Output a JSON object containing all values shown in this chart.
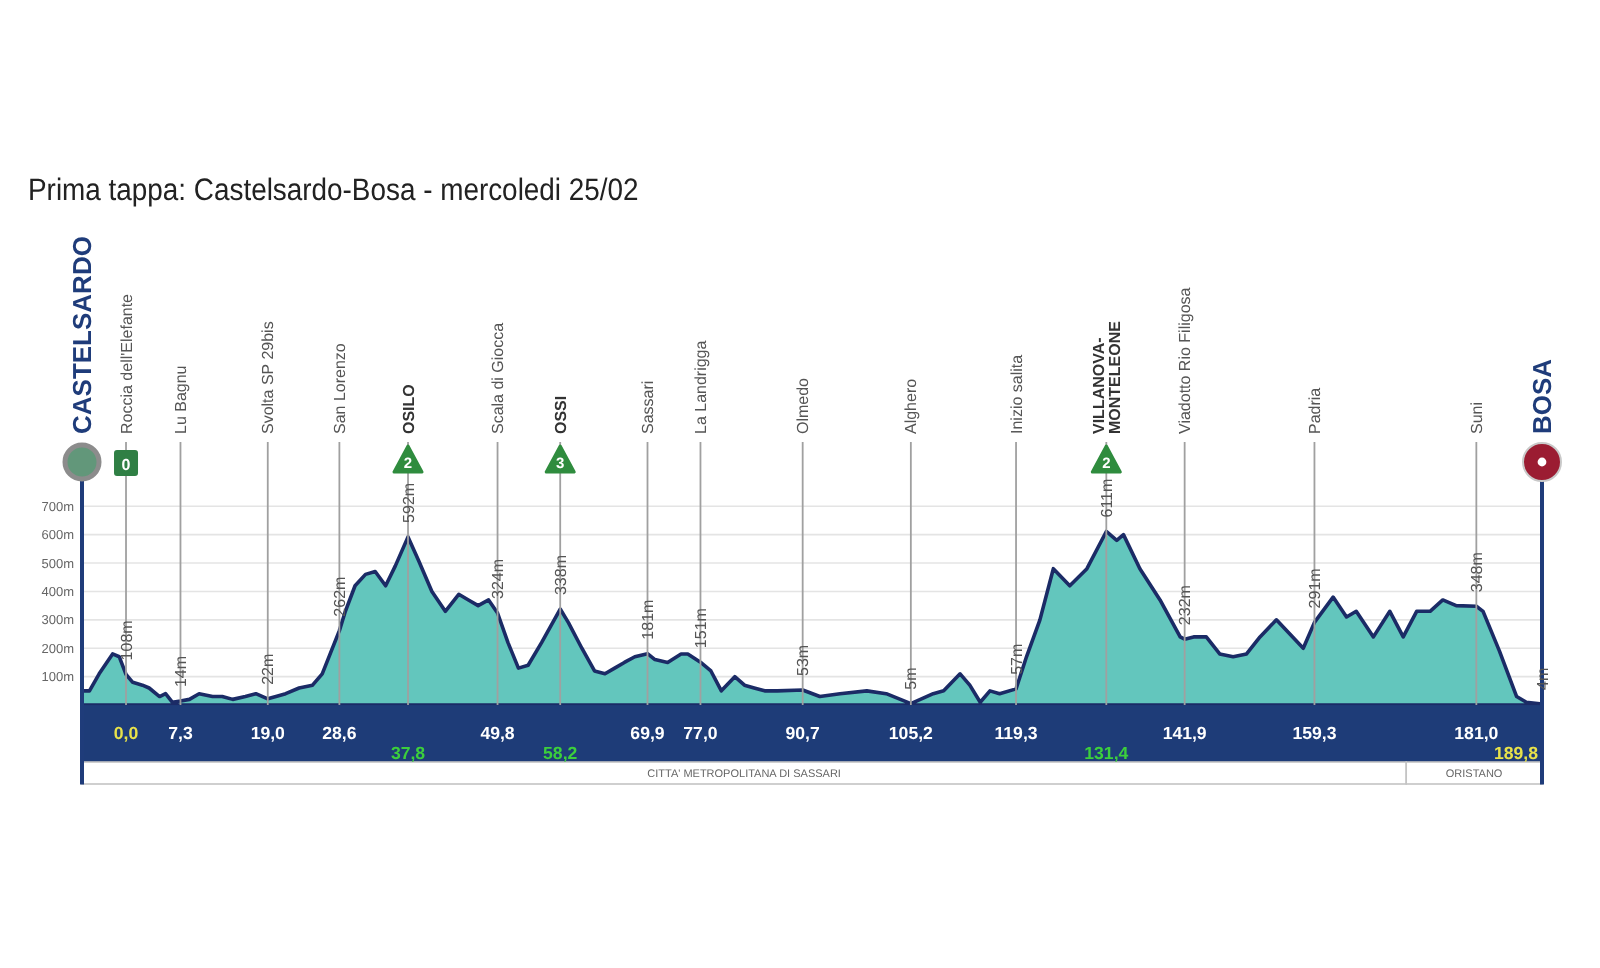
{
  "chart_data": {
    "type": "area",
    "title": "Prima tappa: Castelsardo-Bosa - mercoledi 25/02",
    "color": "#63c6bd",
    "x": [
      -5.9,
      -4.9,
      -3.6,
      -1.8,
      -0.9,
      0,
      0.9,
      2.2,
      3.1,
      4.5,
      5.3,
      6.2,
      7.3,
      8.5,
      9.8,
      11.6,
      12.9,
      14.3,
      16.0,
      17.4,
      19.0,
      20.1,
      21.4,
      23.2,
      25.0,
      26.3,
      28.6,
      29.4,
      30.7,
      32.1,
      33.4,
      34.8,
      36.1,
      37.8,
      39.2,
      41.0,
      42.8,
      44.6,
      45.9,
      47.2,
      48.6,
      49.8,
      51.2,
      52.6,
      53.9,
      55.7,
      58.2,
      59.3,
      61.1,
      62.8,
      64.2,
      65.5,
      66.8,
      68.2,
      69.9,
      70.9,
      72.6,
      74.4,
      75.3,
      77.0,
      78.4,
      79.8,
      81.6,
      82.9,
      84.2,
      85.6,
      87.3,
      90.7,
      93.0,
      95.7,
      99.3,
      101.9,
      105.2,
      108.2,
      109.6,
      111.8,
      113.1,
      114.5,
      115.8,
      117.1,
      119.3,
      120.7,
      122.5,
      124.3,
      126.5,
      128.8,
      131.4,
      132.8,
      133.7,
      135.9,
      138.6,
      141.3,
      141.9,
      143.1,
      144.8,
      146.6,
      148.4,
      150.2,
      152.0,
      154.2,
      156.0,
      157.8,
      159.3,
      161.8,
      163.6,
      164.9,
      167.2,
      169.4,
      171.2,
      173.0,
      174.8,
      176.5,
      178.3,
      181.0,
      181.9,
      184.1,
      186.4,
      187.7,
      189.8
    ],
    "values": [
      50,
      50,
      110,
      180,
      170,
      108,
      80,
      70,
      60,
      30,
      40,
      10,
      14,
      20,
      40,
      30,
      30,
      20,
      30,
      40,
      22,
      30,
      40,
      60,
      70,
      110,
      262,
      330,
      420,
      460,
      470,
      420,
      490,
      592,
      510,
      400,
      330,
      390,
      370,
      350,
      370,
      324,
      220,
      130,
      140,
      220,
      338,
      290,
      200,
      120,
      110,
      130,
      150,
      170,
      181,
      160,
      150,
      180,
      180,
      151,
      120,
      50,
      100,
      70,
      60,
      50,
      50,
      53,
      30,
      40,
      50,
      40,
      5,
      40,
      50,
      110,
      70,
      10,
      50,
      40,
      57,
      170,
      300,
      480,
      420,
      480,
      611,
      580,
      600,
      480,
      370,
      240,
      232,
      240,
      240,
      180,
      170,
      180,
      240,
      300,
      250,
      200,
      291,
      380,
      310,
      330,
      240,
      330,
      240,
      330,
      330,
      370,
      350,
      348,
      330,
      190,
      30,
      10,
      4
    ],
    "xlim": [
      -5.9,
      189.8
    ],
    "ylim": [
      -280,
      850
    ],
    "xticks": [
      {
        "value": 0,
        "label": "0,0"
      },
      {
        "value": 7.3,
        "label": "7,3"
      },
      {
        "value": 19.0,
        "label": "19,0"
      },
      {
        "value": 28.6,
        "label": "28,6"
      },
      {
        "value": 49.8,
        "label": "49,8"
      },
      {
        "value": 69.9,
        "label": "69,9"
      },
      {
        "value": 77.0,
        "label": "77,0"
      },
      {
        "value": 90.7,
        "label": "90,7"
      },
      {
        "value": 105.2,
        "label": "105,2"
      },
      {
        "value": 119.3,
        "label": "119,3"
      },
      {
        "value": 141.9,
        "label": "141,9"
      },
      {
        "value": 159.3,
        "label": "159,3"
      },
      {
        "value": 181.0,
        "label": "181,0"
      }
    ],
    "x2lim": [
      -5.9,
      189.8
    ],
    "x2ticks": [
      {
        "value": 37.8,
        "label": "37,8"
      },
      {
        "value": 58.2,
        "label": "58,2"
      },
      {
        "value": 131.4,
        "label": "131,4"
      },
      {
        "value": 189.8,
        "label": "189,8"
      }
    ],
    "yticks": [
      {
        "value": 100,
        "label": "100m"
      },
      {
        "value": 200,
        "label": "200m"
      },
      {
        "value": 300,
        "label": "300m"
      },
      {
        "value": 400,
        "label": "400m"
      },
      {
        "value": 500,
        "label": "500m"
      },
      {
        "value": 600,
        "label": "600m"
      },
      {
        "value": 700,
        "label": "700m"
      }
    ],
    "grid": "y",
    "ref_lines": [
      {
        "axis": "x",
        "value": 0,
        "label": "Roccia dell'Elefante"
      },
      {
        "axis": "x",
        "value": 7.3,
        "label": "Lu Bagnu"
      },
      {
        "axis": "x",
        "value": 19.0,
        "label": "Svolta SP 29bis"
      },
      {
        "axis": "x",
        "value": 28.6,
        "label": "San Lorenzo"
      },
      {
        "axis": "x",
        "value": 37.8,
        "label": "OSILO"
      },
      {
        "axis": "x",
        "value": 49.8,
        "label": "Scala di Giocca"
      },
      {
        "axis": "x",
        "value": 58.2,
        "label": "OSSI"
      },
      {
        "axis": "x",
        "value": 69.9,
        "label": "Sassari"
      },
      {
        "axis": "x",
        "value": 77.0,
        "label": "La Landrigga"
      },
      {
        "axis": "x",
        "value": 90.7,
        "label": "Olmedo"
      },
      {
        "axis": "x",
        "value": 105.2,
        "label": "Alghero"
      },
      {
        "axis": "x",
        "value": 119.3,
        "label": "Inizio salita"
      },
      {
        "axis": "x",
        "value": 131.4,
        "label": "VILLANOVA-\nMONTELEONE"
      },
      {
        "axis": "x",
        "value": 141.9,
        "label": "Viadotto Rio Filigosa"
      },
      {
        "axis": "x",
        "value": 159.3,
        "label": "Padria"
      },
      {
        "axis": "x",
        "value": 181.0,
        "label": "Suni"
      }
    ],
    "bands": [
      {
        "axis": "x",
        "from": -5.9,
        "to": 171.6,
        "label": "CITTA' METROPOLITANA DI SASSARI",
        "color": "#ffffff"
      },
      {
        "axis": "x",
        "from": 171.6,
        "to": 189.8,
        "label": "ORISTANO",
        "color": "#ffffff"
      }
    ],
    "annotations": [
      "CASTELSARDO",
      "BOSA",
      {
        "text": "0",
        "x": 0
      },
      {
        "text": "2",
        "x": 37.8
      },
      {
        "text": "3",
        "x": 58.2
      },
      {
        "text": "2",
        "x": 131.4
      },
      {
        "text": "108m",
        "x": 0,
        "y": 108
      },
      {
        "text": "14m",
        "x": 7.3,
        "y": 14
      },
      {
        "text": "22m",
        "x": 19.0,
        "y": 22
      },
      {
        "text": "262m",
        "x": 28.6,
        "y": 262
      },
      {
        "text": "592m",
        "x": 37.8,
        "y": 592
      },
      {
        "text": "324m",
        "x": 49.8,
        "y": 324
      },
      {
        "text": "338m",
        "x": 58.2,
        "y": 338
      },
      {
        "text": "181m",
        "x": 69.9,
        "y": 181
      },
      {
        "text": "151m",
        "x": 77.0,
        "y": 151
      },
      {
        "text": "53m",
        "x": 90.7,
        "y": 53
      },
      {
        "text": "5m",
        "x": 105.2,
        "y": 5
      },
      {
        "text": "57m",
        "x": 119.3,
        "y": 57
      },
      {
        "text": "611m",
        "x": 131.4,
        "y": 611
      },
      {
        "text": "232m",
        "x": 141.9,
        "y": 232
      },
      {
        "text": "291m",
        "x": 159.3,
        "y": 291
      },
      {
        "text": "348m",
        "x": 181.0,
        "y": 348
      },
      {
        "text": "4m",
        "x": 189.8,
        "y": 4
      }
    ]
  }
}
